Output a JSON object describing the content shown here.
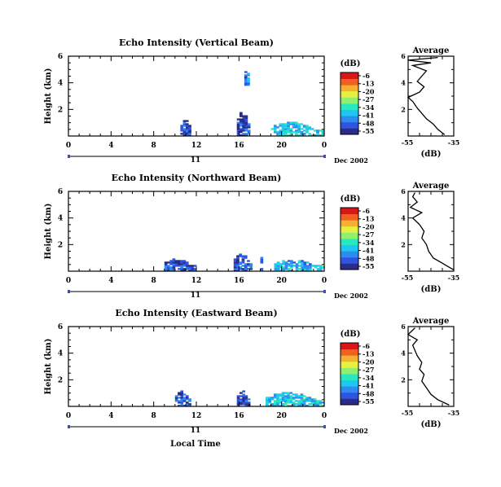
{
  "figure": {
    "xlabel": "Local Time",
    "date_label": "Dec 2002",
    "day_label": "11",
    "colorbar_unit": "(dB)",
    "colorbar_ticks": [
      "-6",
      "-13",
      "-20",
      "-27",
      "-34",
      "-41",
      "-48",
      "-55"
    ],
    "colorbar_colors": [
      "#2b2b8c",
      "#2f55e0",
      "#2c8cf0",
      "#1fc6f0",
      "#28e8c0",
      "#8ef070",
      "#e6f040",
      "#f4b030",
      "#f06020",
      "#d81818"
    ]
  },
  "chart_data": [
    {
      "type": "heatmap",
      "title": "Echo Intensity (Vertical Beam)",
      "ylabel": "Height (km)",
      "xlabel": "",
      "xticks": [
        "0",
        "4",
        "8",
        "12",
        "16",
        "20",
        "0"
      ],
      "yticks": [
        "2",
        "4",
        "6"
      ],
      "xlim": [
        0,
        24
      ],
      "ylim": [
        0,
        6
      ],
      "colorbar": {
        "label": "(dB)",
        "range": [
          -55,
          -6
        ]
      },
      "echo_regions": [
        {
          "t_start": 10.5,
          "t_end": 11.5,
          "h_top": 1.2,
          "level_db": -50
        },
        {
          "t_start": 15.8,
          "t_end": 17.0,
          "h_top": 1.8,
          "level_db": -50
        },
        {
          "t_start": 16.5,
          "t_end": 16.9,
          "h_top": 5.2,
          "h_bottom": 3.8,
          "level_db": -45
        },
        {
          "t_start": 19.0,
          "t_end": 24.0,
          "h_top": 1.0,
          "level_db": -38
        }
      ]
    },
    {
      "type": "line",
      "title": "Average",
      "xlabel": "(dB)",
      "ylabel": "",
      "xticks": [
        "-55",
        "-35"
      ],
      "yticks": [
        "2",
        "4",
        "6"
      ],
      "xlim": [
        -55,
        -35
      ],
      "ylim": [
        0,
        6
      ],
      "profile": [
        [
          -39,
          0.1
        ],
        [
          -42,
          0.5
        ],
        [
          -44,
          0.9
        ],
        [
          -47,
          1.3
        ],
        [
          -49,
          1.7
        ],
        [
          -51,
          2.1
        ],
        [
          -53,
          2.6
        ],
        [
          -55,
          2.9
        ],
        [
          -50,
          3.3
        ],
        [
          -48,
          3.7
        ],
        [
          -51,
          4.1
        ],
        [
          -49,
          4.5
        ],
        [
          -47,
          4.9
        ],
        [
          -53,
          5.3
        ],
        [
          -45,
          5.5
        ],
        [
          -55,
          5.7
        ],
        [
          -42,
          5.9
        ]
      ]
    },
    {
      "type": "heatmap",
      "title": "Echo Intensity (Northward Beam)",
      "ylabel": "Height (km)",
      "xlabel": "",
      "xticks": [
        "0",
        "4",
        "8",
        "12",
        "16",
        "20",
        "0"
      ],
      "yticks": [
        "2",
        "4",
        "6"
      ],
      "xlim": [
        0,
        24
      ],
      "ylim": [
        0,
        6
      ],
      "colorbar": {
        "label": "(dB)",
        "range": [
          -55,
          -6
        ]
      },
      "echo_regions": [
        {
          "t_start": 9.0,
          "t_end": 11.8,
          "h_top": 0.9,
          "level_db": -50
        },
        {
          "t_start": 15.5,
          "t_end": 17.2,
          "h_top": 1.3,
          "level_db": -48
        },
        {
          "t_start": 18.0,
          "t_end": 18.2,
          "h_top": 1.5,
          "level_db": -45
        },
        {
          "t_start": 19.3,
          "t_end": 24.0,
          "h_top": 0.8,
          "level_db": -40
        }
      ]
    },
    {
      "type": "line",
      "title": "Average",
      "xlabel": "(dB)",
      "ylabel": "",
      "xticks": [
        "-55",
        "-35"
      ],
      "yticks": [
        "2",
        "4",
        "6"
      ],
      "xlim": [
        -55,
        -35
      ],
      "ylim": [
        0,
        6
      ],
      "profile": [
        [
          -35,
          0.1
        ],
        [
          -40,
          0.6
        ],
        [
          -44,
          1.0
        ],
        [
          -46,
          1.5
        ],
        [
          -47,
          2.0
        ],
        [
          -49,
          2.5
        ],
        [
          -48,
          3.0
        ],
        [
          -50,
          3.5
        ],
        [
          -53,
          4.0
        ],
        [
          -49,
          4.4
        ],
        [
          -54,
          4.8
        ],
        [
          -51,
          5.2
        ],
        [
          -53,
          5.6
        ],
        [
          -52,
          5.9
        ]
      ]
    },
    {
      "type": "heatmap",
      "title": "Echo Intensity (Eastward Beam)",
      "ylabel": "Height (km)",
      "xlabel": "Local Time",
      "xticks": [
        "0",
        "4",
        "8",
        "12",
        "16",
        "20",
        "0"
      ],
      "yticks": [
        "2",
        "4",
        "6"
      ],
      "xlim": [
        0,
        24
      ],
      "ylim": [
        0,
        6
      ],
      "colorbar": {
        "label": "(dB)",
        "range": [
          -55,
          -6
        ]
      },
      "echo_regions": [
        {
          "t_start": 10.0,
          "t_end": 11.4,
          "h_top": 1.1,
          "level_db": -48
        },
        {
          "t_start": 15.8,
          "t_end": 16.9,
          "h_top": 1.2,
          "level_db": -50
        },
        {
          "t_start": 18.5,
          "t_end": 24.0,
          "h_top": 1.0,
          "level_db": -38
        }
      ]
    },
    {
      "type": "line",
      "title": "Average",
      "xlabel": "(dB)",
      "ylabel": "",
      "xticks": [
        "-55",
        "-35"
      ],
      "yticks": [
        "2",
        "4",
        "6"
      ],
      "xlim": [
        -55,
        -35
      ],
      "ylim": [
        0,
        6
      ],
      "profile": [
        [
          -37,
          0.1
        ],
        [
          -42,
          0.5
        ],
        [
          -45,
          0.9
        ],
        [
          -47,
          1.4
        ],
        [
          -49,
          1.9
        ],
        [
          -48,
          2.4
        ],
        [
          -50,
          2.8
        ],
        [
          -49,
          3.3
        ],
        [
          -51,
          3.8
        ],
        [
          -52,
          4.2
        ],
        [
          -53,
          4.6
        ],
        [
          -51,
          5.0
        ],
        [
          -55,
          5.4
        ],
        [
          -52,
          5.9
        ]
      ]
    }
  ]
}
